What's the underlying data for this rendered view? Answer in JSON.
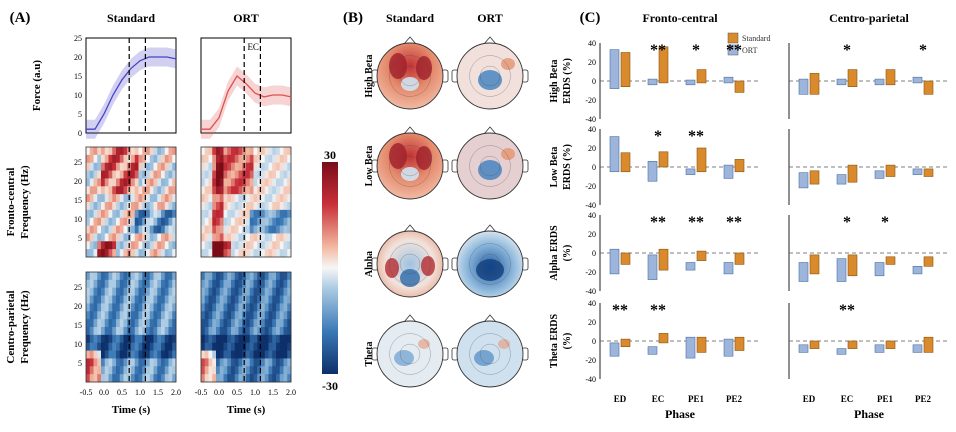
{
  "panels": {
    "A": {
      "label": "(A)",
      "col_titles": [
        "Standard",
        "ORT"
      ],
      "force_ylabel": "Force (a.u)",
      "force_yticks": [
        "0",
        "5",
        "10",
        "15",
        "20",
        "25"
      ],
      "ec_label": "EC",
      "row_labels": [
        "Fronto-central",
        "Centro-parietal"
      ],
      "freq_ylabel": "Frequency (Hz)",
      "freq_yticks": [
        "5",
        "10",
        "15",
        "20",
        "25"
      ],
      "xticks": [
        "-0.5",
        "0.0",
        "0.5",
        "1.0",
        "1.5",
        "2.0"
      ],
      "xlabel": "Time (s)",
      "colorbar_max": "30",
      "colorbar_min": "-30"
    },
    "B": {
      "label": "(B)",
      "col_titles": [
        "Standard",
        "ORT"
      ],
      "bands": [
        "High Beta",
        "Low Beta",
        "Alpha",
        "Theta"
      ]
    },
    "C": {
      "label": "(C)",
      "region_titles": [
        "Fronto-central",
        "Centro-parietal"
      ],
      "legend": [
        "Standard",
        "ORT"
      ],
      "row_ylabels": [
        [
          "High Beta",
          "ERDS (%)"
        ],
        [
          "Low Beta",
          "ERDS (%)"
        ],
        [
          "Alpha ERDS",
          "(%)"
        ],
        [
          "Theta ERDS",
          "(%)"
        ]
      ],
      "yticks": [
        "40",
        "20",
        "0",
        "-20",
        "-40"
      ],
      "phases": [
        "ED",
        "EC",
        "PE1",
        "PE2"
      ],
      "xlabel": "Phase",
      "significance": {
        "fc": [
          [
            "",
            "**",
            "*",
            "**"
          ],
          [
            "",
            "*",
            "**",
            ""
          ],
          [
            "",
            "**",
            "**",
            "**"
          ],
          [
            "**",
            "**",
            "",
            ""
          ]
        ],
        "cp": [
          [
            "",
            "*",
            "",
            "*"
          ],
          [
            "",
            "",
            "",
            ""
          ],
          [
            "",
            "*",
            "*",
            ""
          ],
          [
            "",
            "**",
            "",
            ""
          ]
        ]
      }
    }
  },
  "colors": {
    "standard_bar": "#d98a2c",
    "ort_bar": "#9db5da",
    "standard_force": "#4a44c8",
    "ort_force": "#e05050"
  },
  "chart_data": [
    {
      "type": "line",
      "title": "Standard",
      "ylabel": "Force (a.u)",
      "xlabel": "Time (s)",
      "xlim": [
        -0.5,
        2.0
      ],
      "ylim": [
        0,
        25
      ],
      "x": [
        -0.5,
        -0.25,
        0.0,
        0.25,
        0.5,
        0.75,
        1.0,
        1.25,
        1.5,
        1.75,
        2.0
      ],
      "series": [
        {
          "values": [
            1,
            1,
            5,
            10,
            14,
            17,
            19,
            20,
            20,
            20,
            19.5
          ]
        }
      ]
    },
    {
      "type": "line",
      "title": "ORT",
      "ylabel": "Force (a.u)",
      "xlabel": "Time (s)",
      "xlim": [
        -0.5,
        2.0
      ],
      "ylim": [
        0,
        25
      ],
      "x": [
        -0.5,
        -0.25,
        0.0,
        0.25,
        0.5,
        0.75,
        1.0,
        1.25,
        1.5,
        1.75,
        2.0
      ],
      "series": [
        {
          "values": [
            1,
            1,
            4,
            11,
            15,
            13,
            10.5,
            9.5,
            10,
            10,
            9.5
          ]
        }
      ]
    },
    {
      "type": "bar",
      "title": "Fronto-central",
      "xlabel": "Phase",
      "ylim": [
        -40,
        40
      ],
      "categories": [
        "ED",
        "EC",
        "PE1",
        "PE2"
      ],
      "rows": [
        {
          "ylabel": "High Beta ERDS (%)",
          "series": [
            {
              "name": "Standard",
              "ranges": [
                [
                  -6,
                  30
                ],
                [
                  -2,
                  36
                ],
                [
                  -2,
                  12
                ],
                [
                  -12,
                  0
                ]
              ]
            },
            {
              "name": "ORT",
              "ranges": [
                [
                  -8,
                  33
                ],
                [
                  -4,
                  2
                ],
                [
                  -4,
                  1
                ],
                [
                  -2,
                  4
                ]
              ]
            }
          ]
        },
        {
          "ylabel": "Low Beta ERDS (%)",
          "series": [
            {
              "name": "Standard",
              "ranges": [
                [
                  -5,
                  15
                ],
                [
                  0,
                  16
                ],
                [
                  -5,
                  20
                ],
                [
                  -5,
                  8
                ]
              ]
            },
            {
              "name": "ORT",
              "ranges": [
                [
                  -5,
                  32
                ],
                [
                  -15,
                  6
                ],
                [
                  -8,
                  -2
                ],
                [
                  -12,
                  2
                ]
              ]
            }
          ]
        },
        {
          "ylabel": "Alpha ERDS (%)",
          "series": [
            {
              "name": "Standard",
              "ranges": [
                [
                  -12,
                  0
                ],
                [
                  -18,
                  4
                ],
                [
                  -8,
                  2
                ],
                [
                  -12,
                  0
                ]
              ]
            },
            {
              "name": "ORT",
              "ranges": [
                [
                  -22,
                  4
                ],
                [
                  -28,
                  -2
                ],
                [
                  -18,
                  -10
                ],
                [
                  -22,
                  -10
                ]
              ]
            }
          ]
        },
        {
          "ylabel": "Theta ERDS (%)",
          "series": [
            {
              "name": "Standard",
              "ranges": [
                [
                  -6,
                  2
                ],
                [
                  -2,
                  8
                ],
                [
                  -12,
                  4
                ],
                [
                  -10,
                  4
                ]
              ]
            },
            {
              "name": "ORT",
              "ranges": [
                [
                  -16,
                  -2
                ],
                [
                  -14,
                  -6
                ],
                [
                  -18,
                  4
                ],
                [
                  -16,
                  2
                ]
              ]
            }
          ]
        }
      ]
    },
    {
      "type": "bar",
      "title": "Centro-parietal",
      "xlabel": "Phase",
      "ylim": [
        -40,
        40
      ],
      "categories": [
        "ED",
        "EC",
        "PE1",
        "PE2"
      ],
      "rows": [
        {
          "ylabel": "High Beta ERDS (%)",
          "series": [
            {
              "name": "Standard",
              "ranges": [
                [
                  -14,
                  8
                ],
                [
                  -6,
                  12
                ],
                [
                  -4,
                  12
                ],
                [
                  -14,
                  0
                ]
              ]
            },
            {
              "name": "ORT",
              "ranges": [
                [
                  -14,
                  2
                ],
                [
                  -4,
                  2
                ],
                [
                  -4,
                  2
                ],
                [
                  -2,
                  4
                ]
              ]
            }
          ]
        },
        {
          "ylabel": "Low Beta ERDS (%)",
          "series": [
            {
              "name": "Standard",
              "ranges": [
                [
                  -18,
                  -4
                ],
                [
                  -16,
                  2
                ],
                [
                  -10,
                  2
                ],
                [
                  -10,
                  -2
                ]
              ]
            },
            {
              "name": "ORT",
              "ranges": [
                [
                  -22,
                  -6
                ],
                [
                  -18,
                  -8
                ],
                [
                  -12,
                  -4
                ],
                [
                  -8,
                  -2
                ]
              ]
            }
          ]
        },
        {
          "ylabel": "Alpha ERDS (%)",
          "series": [
            {
              "name": "Standard",
              "ranges": [
                [
                  -22,
                  -2
                ],
                [
                  -24,
                  -2
                ],
                [
                  -12,
                  -4
                ],
                [
                  -14,
                  -4
                ]
              ]
            },
            {
              "name": "ORT",
              "ranges": [
                [
                  -30,
                  -10
                ],
                [
                  -30,
                  -6
                ],
                [
                  -24,
                  -10
                ],
                [
                  -22,
                  -14
                ]
              ]
            }
          ]
        },
        {
          "ylabel": "Theta ERDS (%)",
          "series": [
            {
              "name": "Standard",
              "ranges": [
                [
                  -8,
                  0
                ],
                [
                  -8,
                  0
                ],
                [
                  -8,
                  0
                ],
                [
                  -12,
                  4
                ]
              ]
            },
            {
              "name": "ORT",
              "ranges": [
                [
                  -12,
                  -4
                ],
                [
                  -14,
                  -8
                ],
                [
                  -12,
                  -4
                ],
                [
                  -12,
                  -4
                ]
              ]
            }
          ]
        }
      ]
    }
  ]
}
